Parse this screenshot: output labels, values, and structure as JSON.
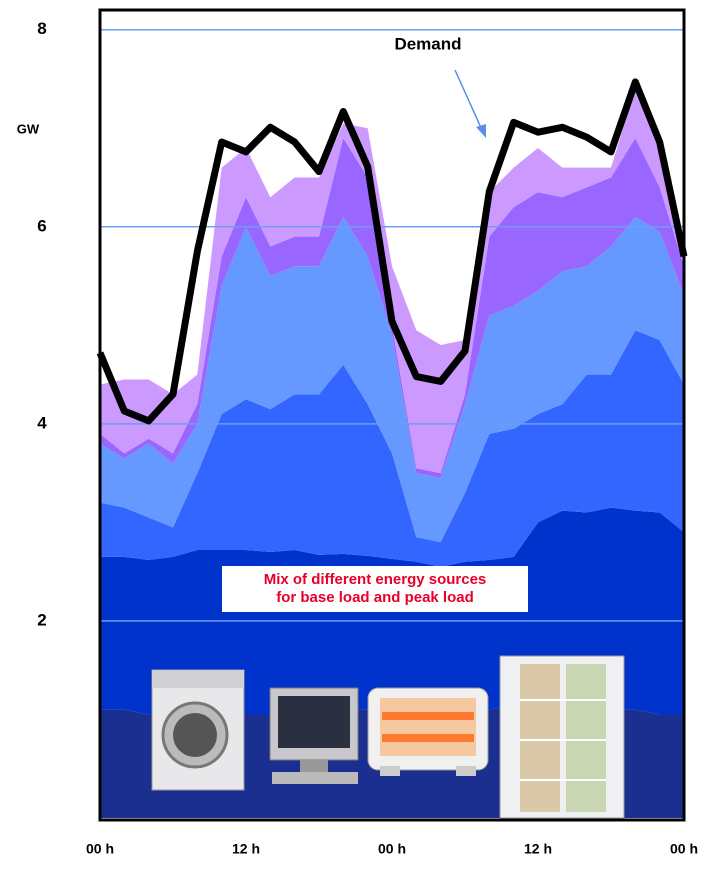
{
  "chart_data": {
    "type": "area",
    "ylabel": "GW",
    "annotation": [
      "Mix of different energy sources",
      "for base load and peak load"
    ],
    "x": [
      0,
      2,
      4,
      6,
      8,
      10,
      12,
      14,
      16,
      18,
      20,
      22,
      24,
      26,
      28,
      30,
      32,
      34,
      36,
      38,
      40,
      42,
      44,
      46,
      48
    ],
    "xlim": [
      0,
      48
    ],
    "xticks": [
      {
        "value": 0,
        "label": "00 h"
      },
      {
        "value": 12,
        "label": "12 h"
      },
      {
        "value": 24,
        "label": "00 h"
      },
      {
        "value": 36,
        "label": "12 h"
      },
      {
        "value": 48,
        "label": "00 h"
      }
    ],
    "ylim": [
      0,
      8.2
    ],
    "yticks": [
      2,
      4,
      6,
      8
    ],
    "grid": true,
    "series": [
      {
        "color": "#1a2f8f",
        "values": [
          1.1,
          1.1,
          1.05,
          1.05,
          1.0,
          1.0,
          1.05,
          1.05,
          1.05,
          1.1,
          1.1,
          1.1,
          1.1,
          1.1,
          1.1,
          1.1,
          1.1,
          1.15,
          1.15,
          1.15,
          1.15,
          1.1,
          1.1,
          1.05,
          1.05
        ]
      },
      {
        "color": "#0033cc",
        "values": [
          1.55,
          1.55,
          1.57,
          1.6,
          1.72,
          1.72,
          1.67,
          1.65,
          1.67,
          1.57,
          1.58,
          1.56,
          1.53,
          1.5,
          1.45,
          1.5,
          1.52,
          1.5,
          1.85,
          1.97,
          1.95,
          2.05,
          2.02,
          2.05,
          1.85
        ]
      },
      {
        "color": "#3366ff",
        "values": [
          0.55,
          0.5,
          0.43,
          0.3,
          0.78,
          1.38,
          1.53,
          1.45,
          1.58,
          1.63,
          1.92,
          1.54,
          1.07,
          0.25,
          0.25,
          0.7,
          1.28,
          1.3,
          1.1,
          1.08,
          1.4,
          1.35,
          1.83,
          1.75,
          1.5
        ]
      },
      {
        "color": "#6699ff",
        "values": [
          0.6,
          0.5,
          0.75,
          0.65,
          0.5,
          1.3,
          1.75,
          1.35,
          1.3,
          1.3,
          1.5,
          1.5,
          1.2,
          0.65,
          0.65,
          0.9,
          1.2,
          1.25,
          1.25,
          1.35,
          1.1,
          1.3,
          1.15,
          1.1,
          0.9
        ]
      },
      {
        "color": "#9966ff",
        "values": [
          0.1,
          0.05,
          0.05,
          0.1,
          0.2,
          0.3,
          0.3,
          0.3,
          0.3,
          0.3,
          0.8,
          0.8,
          0.1,
          0.05,
          0.05,
          0.1,
          0.8,
          1.0,
          1.0,
          0.75,
          0.8,
          0.7,
          0.8,
          0.45,
          0.3
        ]
      },
      {
        "color": "#cc99ff",
        "values": [
          0.5,
          0.75,
          0.6,
          0.6,
          0.3,
          0.9,
          0.5,
          0.5,
          0.6,
          0.6,
          0.15,
          0.5,
          0.6,
          1.4,
          1.3,
          0.55,
          0.45,
          0.4,
          0.45,
          0.3,
          0.2,
          0.1,
          0.5,
          0.5,
          0.25
        ]
      },
      {
        "name": "Demand",
        "type": "line",
        "color": "#000000",
        "values": [
          4.72,
          4.13,
          4.03,
          4.3,
          5.75,
          6.86,
          6.76,
          7.01,
          6.86,
          6.56,
          7.17,
          6.61,
          5.04,
          4.48,
          4.43,
          4.74,
          6.36,
          7.06,
          6.96,
          7.01,
          6.91,
          6.76,
          7.47,
          6.86,
          5.7
        ]
      }
    ]
  }
}
